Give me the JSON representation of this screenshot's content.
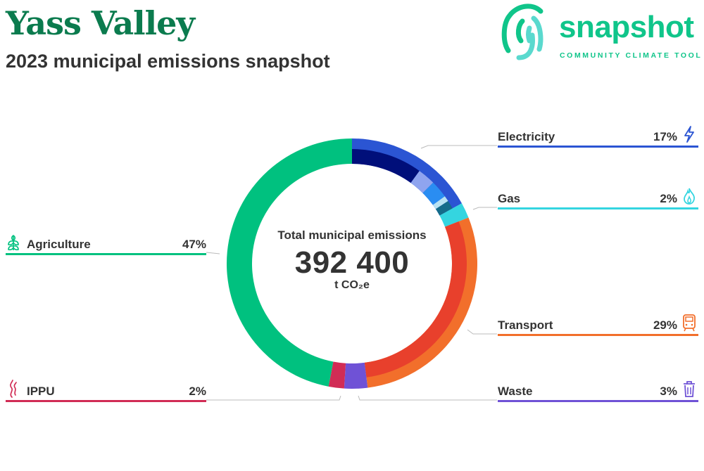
{
  "header": {
    "title": "Yass Valley",
    "subtitle": "2023 municipal emissions snapshot"
  },
  "logo": {
    "word": "snapshot",
    "tagline": "COMMUNITY CLIMATE TOOL",
    "color": "#10c58a"
  },
  "center": {
    "label": "Total municipal emissions",
    "value": "392 400",
    "unit": "t CO₂e"
  },
  "chart_data": {
    "type": "pie",
    "total": 392400,
    "unit": "t CO₂e",
    "series": [
      {
        "name": "Electricity",
        "percent_label": "17%",
        "value": 17,
        "color": "#2b55d3",
        "icon": "lightning-icon",
        "subsegments": [
          {
            "value": 10,
            "color": "#000f7a"
          },
          {
            "value": 2.5,
            "color": "#8fa4ef"
          },
          {
            "value": 2.5,
            "color": "#2a8df2"
          },
          {
            "value": 0.8,
            "color": "#b8e2f2"
          },
          {
            "value": 1.2,
            "color": "#146c8a"
          }
        ]
      },
      {
        "name": "Gas",
        "percent_label": "2%",
        "value": 2,
        "color": "#34d5e0",
        "icon": "flame-icon"
      },
      {
        "name": "Transport",
        "percent_label": "29%",
        "value": 29,
        "color": "#f26f2b",
        "icon": "train-icon",
        "subsegments": [
          {
            "value": 29,
            "color": "#e8402c"
          }
        ]
      },
      {
        "name": "Waste",
        "percent_label": "3%",
        "value": 3,
        "color": "#6f52d6",
        "icon": "bin-icon"
      },
      {
        "name": "IPPU",
        "percent_label": "2%",
        "value": 2,
        "color": "#d12c55",
        "icon": "smoke-icon"
      },
      {
        "name": "Agriculture",
        "percent_label": "47%",
        "value": 47,
        "color": "#00c17f",
        "icon": "wheat-icon"
      }
    ]
  },
  "legend": [
    {
      "name": "Electricity",
      "percent": "17%",
      "color": "#2b55d3",
      "icon": "lightning-icon"
    },
    {
      "name": "Gas",
      "percent": "2%",
      "color": "#34d5e0",
      "icon": "flame-icon"
    },
    {
      "name": "Transport",
      "percent": "29%",
      "color": "#f26f2b",
      "icon": "train-icon"
    },
    {
      "name": "Waste",
      "percent": "3%",
      "color": "#6f52d6",
      "icon": "bin-icon"
    },
    {
      "name": "Agriculture",
      "percent": "47%",
      "color": "#00c17f",
      "icon": "wheat-icon"
    },
    {
      "name": "IPPU",
      "percent": "2%",
      "color": "#d12c55",
      "icon": "smoke-icon"
    }
  ]
}
